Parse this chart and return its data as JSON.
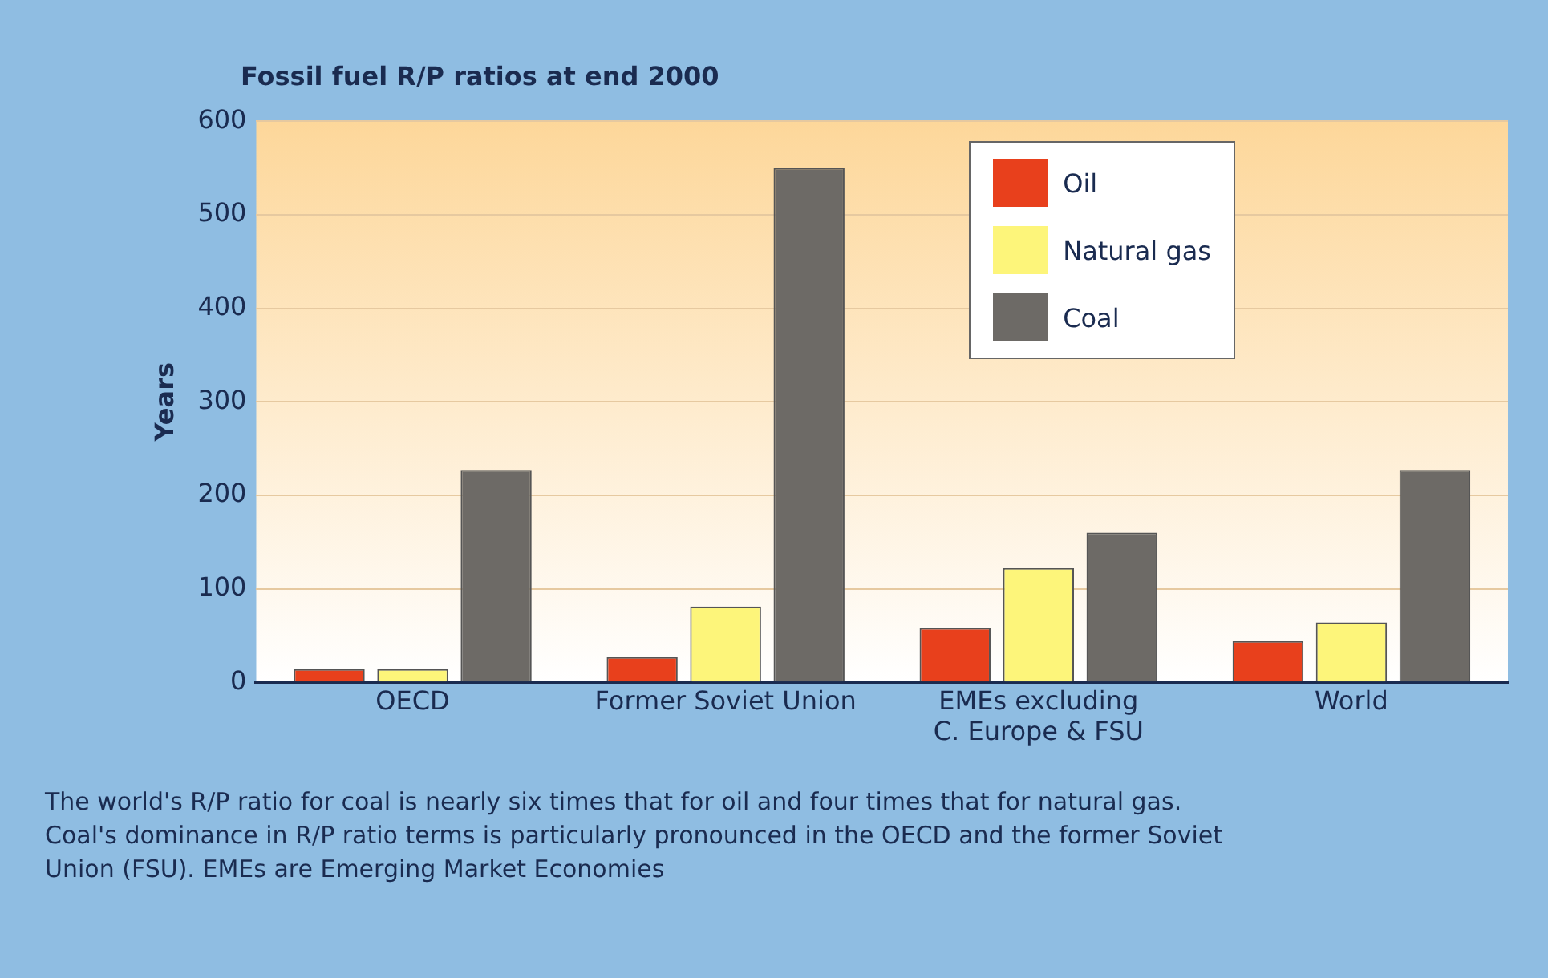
{
  "chart_data": {
    "type": "bar",
    "title": "Fossil fuel R/P ratios at end 2000",
    "ylabel": "Years",
    "categories": [
      "OECD",
      "Former Soviet Union",
      "EMEs excluding\nC. Europe & FSU",
      "World"
    ],
    "series": [
      {
        "name": "Oil",
        "color": "#e8401c",
        "values": [
          14,
          27,
          58,
          44
        ]
      },
      {
        "name": "Natural gas",
        "color": "#fdf57a",
        "values": [
          14,
          81,
          122,
          64
        ]
      },
      {
        "name": "Coal",
        "color": "#6d6a66",
        "values": [
          227,
          550,
          160,
          227
        ]
      }
    ],
    "ylim": [
      0,
      600
    ],
    "yticks": [
      0,
      100,
      200,
      300,
      400,
      500,
      600
    ],
    "grid": "y",
    "legend": "top right",
    "annotations": [
      "The world's R/P ratio for coal is nearly six times that for oil and four times that for natural gas.",
      "Coal's dominance in R/P ratio terms is particularly pronounced in the OECD and the former Soviet Union (FSU). EMEs are Emerging Market Economies"
    ]
  }
}
